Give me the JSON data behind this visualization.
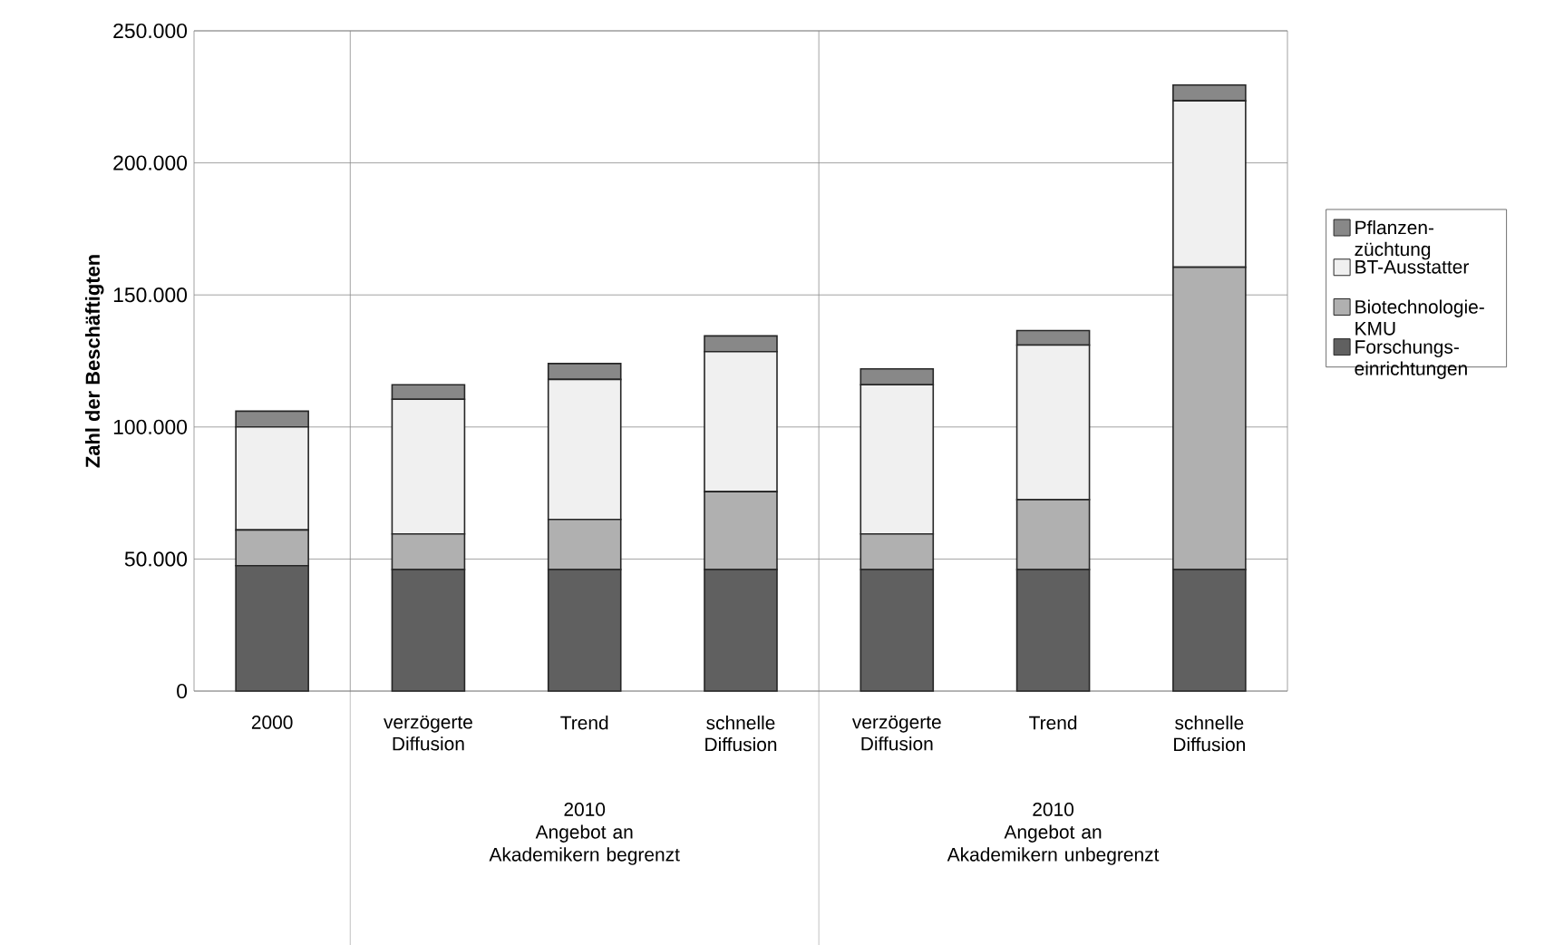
{
  "chart_data": {
    "type": "bar",
    "stacked": true,
    "ylabel": "Zahl der Beschäftigten",
    "categories": [
      "2000",
      "verzögerte Diffusion",
      "Trend",
      "schnelle Diffusion",
      "verzögerte Diffusion",
      "Trend",
      "schnelle Diffusion"
    ],
    "series": [
      {
        "name": "Forschungs-einrichtungen",
        "color": "#606060",
        "values": [
          47500,
          46000,
          46000,
          46000,
          46000,
          46000,
          46000
        ]
      },
      {
        "name": "Biotechnologie-KMU",
        "color": "#b0b0b0",
        "values": [
          13500,
          13500,
          19000,
          29500,
          13500,
          26500,
          114500
        ]
      },
      {
        "name": "BT-Ausstatter",
        "color": "#f0f0f0",
        "values": [
          39000,
          51000,
          53000,
          53000,
          56500,
          58500,
          63000
        ]
      },
      {
        "name": "Pflanzen-züchtung",
        "color": "#888888",
        "values": [
          6000,
          5500,
          6000,
          6000,
          6000,
          5500,
          6000
        ]
      }
    ],
    "ylim": [
      0,
      250000
    ],
    "yticks": [
      {
        "value": 0,
        "label": "0"
      },
      {
        "value": 50000,
        "label": "50.000"
      },
      {
        "value": 100000,
        "label": "100.000"
      },
      {
        "value": 150000,
        "label": "150.000"
      },
      {
        "value": 200000,
        "label": "200.000"
      },
      {
        "value": 250000,
        "label": "250.000"
      }
    ],
    "grid": "y",
    "legend": "right",
    "annotations": [
      "2010",
      "Angebot an Akademikern begrenzt",
      "2010",
      "Angebot an Akademikern unbegrenzt"
    ]
  }
}
